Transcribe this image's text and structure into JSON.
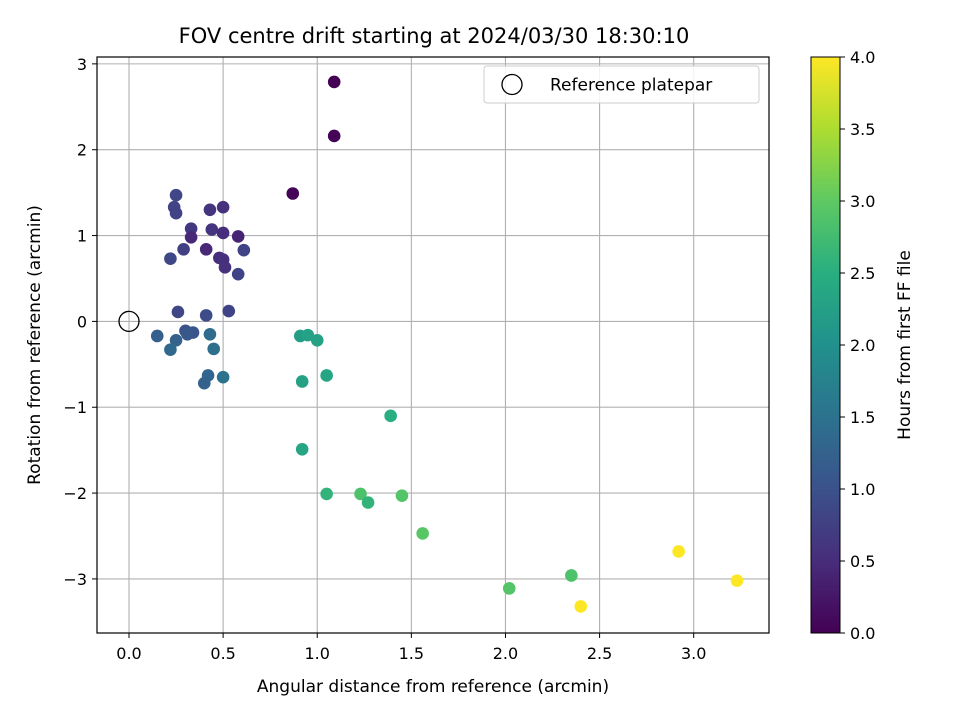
{
  "chart_data": {
    "type": "scatter",
    "title": "FOV centre drift starting at 2024/03/30 18:30:10",
    "xlabel": "Angular distance from reference (arcmin)",
    "ylabel": "Rotation from reference (arcmin)",
    "xlim": [
      -0.17,
      3.4
    ],
    "ylim": [
      -3.63,
      3.08
    ],
    "xticks": [
      0.0,
      0.5,
      1.0,
      1.5,
      2.0,
      2.5,
      3.0
    ],
    "xtick_labels": [
      "0.0",
      "0.5",
      "1.0",
      "1.5",
      "2.0",
      "2.5",
      "3.0"
    ],
    "yticks": [
      -3,
      -2,
      -1,
      0,
      1,
      2,
      3
    ],
    "ytick_labels": [
      "−3",
      "−2",
      "−1",
      "0",
      "1",
      "2",
      "3"
    ],
    "grid": true,
    "legend": {
      "label": "Reference platepar",
      "placement": "upper-right"
    },
    "reference_point": {
      "x": 0.0,
      "y": 0.0
    },
    "colorbar": {
      "label": "Hours from first FF file",
      "colormap": "viridis",
      "range": [
        0.0,
        4.0
      ],
      "ticks": [
        0.0,
        0.5,
        1.0,
        1.5,
        2.0,
        2.5,
        3.0,
        3.5,
        4.0
      ],
      "tick_labels": [
        "0.0",
        "0.5",
        "1.0",
        "1.5",
        "2.0",
        "2.5",
        "3.0",
        "3.5",
        "4.0"
      ]
    },
    "points": [
      {
        "x": 1.09,
        "y": 2.79,
        "c": 0.0
      },
      {
        "x": 1.09,
        "y": 2.16,
        "c": 0.02
      },
      {
        "x": 0.87,
        "y": 1.49,
        "c": 0.05
      },
      {
        "x": 0.25,
        "y": 1.47,
        "c": 0.85
      },
      {
        "x": 0.24,
        "y": 1.33,
        "c": 0.8
      },
      {
        "x": 0.25,
        "y": 1.26,
        "c": 0.8
      },
      {
        "x": 0.43,
        "y": 1.3,
        "c": 0.6
      },
      {
        "x": 0.5,
        "y": 1.33,
        "c": 0.55
      },
      {
        "x": 0.33,
        "y": 1.08,
        "c": 0.65
      },
      {
        "x": 0.44,
        "y": 1.07,
        "c": 0.6
      },
      {
        "x": 0.5,
        "y": 1.03,
        "c": 0.5
      },
      {
        "x": 0.33,
        "y": 0.98,
        "c": 0.45
      },
      {
        "x": 0.58,
        "y": 0.99,
        "c": 0.4
      },
      {
        "x": 0.29,
        "y": 0.84,
        "c": 0.75
      },
      {
        "x": 0.41,
        "y": 0.84,
        "c": 0.45
      },
      {
        "x": 0.61,
        "y": 0.83,
        "c": 0.8
      },
      {
        "x": 0.22,
        "y": 0.73,
        "c": 0.85
      },
      {
        "x": 0.48,
        "y": 0.74,
        "c": 0.5
      },
      {
        "x": 0.5,
        "y": 0.72,
        "c": 0.55
      },
      {
        "x": 0.51,
        "y": 0.63,
        "c": 0.55
      },
      {
        "x": 0.58,
        "y": 0.55,
        "c": 0.8
      },
      {
        "x": 0.26,
        "y": 0.11,
        "c": 0.85
      },
      {
        "x": 0.41,
        "y": 0.07,
        "c": 0.9
      },
      {
        "x": 0.53,
        "y": 0.12,
        "c": 0.8
      },
      {
        "x": 0.3,
        "y": -0.11,
        "c": 1.0
      },
      {
        "x": 0.34,
        "y": -0.13,
        "c": 1.05
      },
      {
        "x": 0.31,
        "y": -0.15,
        "c": 1.1
      },
      {
        "x": 0.15,
        "y": -0.17,
        "c": 1.2
      },
      {
        "x": 0.25,
        "y": -0.22,
        "c": 1.25
      },
      {
        "x": 0.43,
        "y": -0.15,
        "c": 1.4
      },
      {
        "x": 0.22,
        "y": -0.33,
        "c": 1.35
      },
      {
        "x": 0.45,
        "y": -0.32,
        "c": 1.45
      },
      {
        "x": 0.42,
        "y": -0.63,
        "c": 1.3
      },
      {
        "x": 0.4,
        "y": -0.72,
        "c": 1.25
      },
      {
        "x": 0.5,
        "y": -0.65,
        "c": 1.5
      },
      {
        "x": 0.91,
        "y": -0.17,
        "c": 2.2
      },
      {
        "x": 0.95,
        "y": -0.16,
        "c": 2.3
      },
      {
        "x": 1.0,
        "y": -0.22,
        "c": 2.3
      },
      {
        "x": 0.92,
        "y": -0.7,
        "c": 2.3
      },
      {
        "x": 1.05,
        "y": -0.63,
        "c": 2.35
      },
      {
        "x": 1.39,
        "y": -1.1,
        "c": 2.5
      },
      {
        "x": 0.92,
        "y": -1.49,
        "c": 2.35
      },
      {
        "x": 1.05,
        "y": -2.01,
        "c": 2.6
      },
      {
        "x": 1.23,
        "y": -2.01,
        "c": 2.85
      },
      {
        "x": 1.27,
        "y": -2.11,
        "c": 2.6
      },
      {
        "x": 1.45,
        "y": -2.03,
        "c": 2.9
      },
      {
        "x": 1.56,
        "y": -2.47,
        "c": 2.95
      },
      {
        "x": 2.02,
        "y": -3.11,
        "c": 2.9
      },
      {
        "x": 2.35,
        "y": -2.96,
        "c": 2.85
      },
      {
        "x": 2.4,
        "y": -3.32,
        "c": 4.0
      },
      {
        "x": 2.92,
        "y": -2.68,
        "c": 4.0
      },
      {
        "x": 3.23,
        "y": -3.02,
        "c": 4.0
      }
    ]
  }
}
